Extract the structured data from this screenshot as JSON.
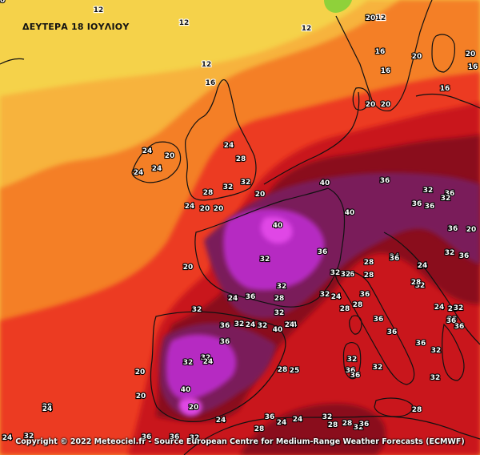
{
  "map": {
    "title": "ΔΕΥΤΕΡΑ 18 ΙΟΥΛΙΟΥ",
    "copyright": "Copyright © 2022 Meteociel.fr - Source European Centre for Medium-Range Weather Forecasts (ECMWF)",
    "colors": {
      "t12": "#f5d24a",
      "t16": "#f7b33c",
      "t20": "#f47f26",
      "t24": "#ec3b23",
      "t28": "#c9141c",
      "t32": "#8a0a1a",
      "t36": "#7a1e5a",
      "t40": "#b62ac2",
      "t44": "#e046e6",
      "cold": "#8fd13a",
      "coast": "#111111"
    },
    "labels": [
      {
        "text": "12",
        "tone": "dark"
      },
      {
        "text": "12",
        "tone": "dark"
      },
      {
        "text": "12",
        "tone": "dark"
      },
      {
        "text": "12",
        "tone": "dark"
      },
      {
        "text": "16",
        "tone": "dark"
      },
      {
        "text": "12",
        "tone": "dark"
      },
      {
        "text": "20",
        "tone": "light"
      },
      {
        "text": "16",
        "tone": "light"
      },
      {
        "text": "16",
        "tone": "light"
      },
      {
        "text": "16",
        "tone": "light"
      },
      {
        "text": "20",
        "tone": "light"
      },
      {
        "text": "20",
        "tone": "light"
      },
      {
        "text": "16",
        "tone": "light"
      },
      {
        "text": "20",
        "tone": "light"
      },
      {
        "text": "20",
        "tone": "light"
      },
      {
        "text": "24",
        "tone": "light"
      },
      {
        "text": "24",
        "tone": "light"
      },
      {
        "text": "24",
        "tone": "light"
      },
      {
        "text": "20",
        "tone": "light"
      },
      {
        "text": "24",
        "tone": "light"
      },
      {
        "text": "28",
        "tone": "light"
      },
      {
        "text": "32",
        "tone": "light"
      },
      {
        "text": "28",
        "tone": "light"
      },
      {
        "text": "32",
        "tone": "light"
      },
      {
        "text": "20",
        "tone": "light"
      },
      {
        "text": "24",
        "tone": "light"
      },
      {
        "text": "20",
        "tone": "light"
      },
      {
        "text": "20",
        "tone": "light"
      },
      {
        "text": "36",
        "tone": "light"
      },
      {
        "text": "40",
        "tone": "light"
      },
      {
        "text": "40",
        "tone": "light"
      },
      {
        "text": "40",
        "tone": "light"
      },
      {
        "text": "36",
        "tone": "light"
      },
      {
        "text": "36",
        "tone": "light"
      },
      {
        "text": "36",
        "tone": "light"
      },
      {
        "text": "32",
        "tone": "light"
      },
      {
        "text": "32",
        "tone": "light"
      },
      {
        "text": "36",
        "tone": "light"
      },
      {
        "text": "20",
        "tone": "light"
      },
      {
        "text": "20",
        "tone": "light"
      },
      {
        "text": "24",
        "tone": "light"
      },
      {
        "text": "36",
        "tone": "light"
      },
      {
        "text": "32",
        "tone": "light"
      },
      {
        "text": "32",
        "tone": "light"
      },
      {
        "text": "36",
        "tone": "light"
      },
      {
        "text": "28",
        "tone": "light"
      },
      {
        "text": "32",
        "tone": "light"
      },
      {
        "text": "24",
        "tone": "light"
      },
      {
        "text": "36",
        "tone": "light"
      },
      {
        "text": "28",
        "tone": "light"
      },
      {
        "text": "32",
        "tone": "light"
      },
      {
        "text": "24",
        "tone": "light"
      },
      {
        "text": "36",
        "tone": "light"
      },
      {
        "text": "32",
        "tone": "light"
      },
      {
        "text": "32",
        "tone": "light"
      },
      {
        "text": "36",
        "tone": "light"
      },
      {
        "text": "32",
        "tone": "light"
      },
      {
        "text": "28",
        "tone": "light"
      },
      {
        "text": "28",
        "tone": "light"
      },
      {
        "text": "36",
        "tone": "light"
      },
      {
        "text": "28",
        "tone": "light"
      },
      {
        "text": "32",
        "tone": "light"
      },
      {
        "text": "36",
        "tone": "light"
      },
      {
        "text": "24",
        "tone": "light"
      },
      {
        "text": "28",
        "tone": "light"
      },
      {
        "text": "40",
        "tone": "light"
      },
      {
        "text": "40",
        "tone": "light"
      },
      {
        "text": "20",
        "tone": "light"
      },
      {
        "text": "20",
        "tone": "light"
      },
      {
        "text": "20",
        "tone": "light"
      },
      {
        "text": "28",
        "tone": "light"
      },
      {
        "text": "20",
        "tone": "light"
      },
      {
        "text": "24",
        "tone": "light"
      },
      {
        "text": "32",
        "tone": "light"
      },
      {
        "text": "24",
        "tone": "light"
      },
      {
        "text": "32",
        "tone": "light"
      },
      {
        "text": "36",
        "tone": "light"
      },
      {
        "text": "36",
        "tone": "light"
      },
      {
        "text": "32",
        "tone": "light"
      },
      {
        "text": "32",
        "tone": "light"
      },
      {
        "text": "32",
        "tone": "light"
      },
      {
        "text": "24",
        "tone": "light"
      },
      {
        "text": "24",
        "tone": "light"
      },
      {
        "text": "24",
        "tone": "light"
      },
      {
        "text": "28",
        "tone": "light"
      },
      {
        "text": "28",
        "tone": "light"
      },
      {
        "text": "25",
        "tone": "light"
      },
      {
        "text": "24",
        "tone": "light"
      },
      {
        "text": "28",
        "tone": "light"
      },
      {
        "text": "36",
        "tone": "light"
      },
      {
        "text": "36",
        "tone": "light"
      },
      {
        "text": "36",
        "tone": "light"
      },
      {
        "text": "32",
        "tone": "light"
      },
      {
        "text": "36",
        "tone": "light"
      },
      {
        "text": "32",
        "tone": "light"
      },
      {
        "text": "36",
        "tone": "light"
      },
      {
        "text": "32",
        "tone": "light"
      },
      {
        "text": "28",
        "tone": "light"
      },
      {
        "text": "32",
        "tone": "light"
      },
      {
        "text": "28",
        "tone": "light"
      },
      {
        "text": "24",
        "tone": "light"
      },
      {
        "text": "36",
        "tone": "light"
      },
      {
        "text": "32",
        "tone": "light"
      },
      {
        "text": "28",
        "tone": "light"
      },
      {
        "text": "24",
        "tone": "light"
      },
      {
        "text": "32",
        "tone": "light"
      },
      {
        "text": "28",
        "tone": "light"
      },
      {
        "text": "36",
        "tone": "light"
      },
      {
        "text": "36",
        "tone": "light"
      },
      {
        "text": "32",
        "tone": "light"
      },
      {
        "text": "36",
        "tone": "light"
      },
      {
        "text": "32",
        "tone": "light"
      },
      {
        "text": "36",
        "tone": "light"
      },
      {
        "text": "32",
        "tone": "light"
      },
      {
        "text": "24",
        "tone": "light"
      },
      {
        "text": "24",
        "tone": "light"
      },
      {
        "text": "24",
        "tone": "light"
      },
      {
        "text": "20",
        "tone": "light"
      }
    ]
  }
}
